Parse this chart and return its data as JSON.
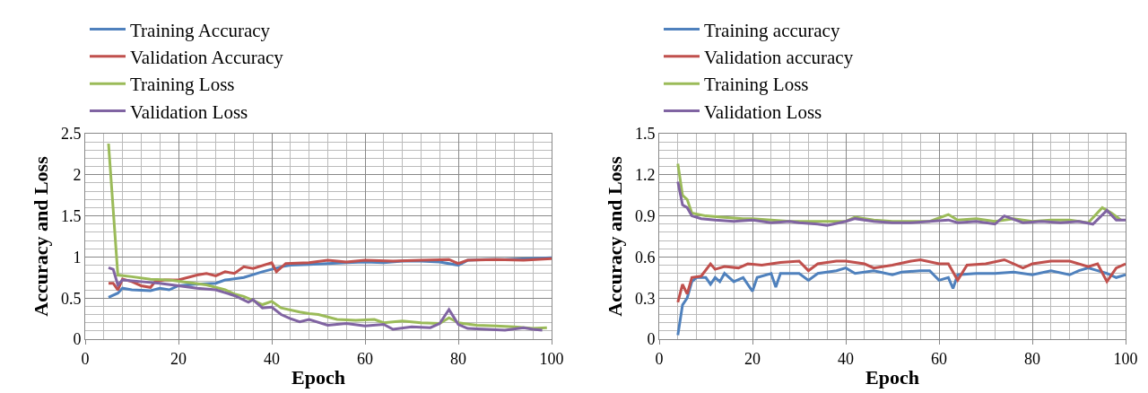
{
  "chart_data": [
    {
      "type": "line",
      "xlabel": "Epoch",
      "ylabel": "Accuracy and Loss",
      "xlim": [
        0,
        100
      ],
      "xticks": [
        0,
        20,
        40,
        60,
        80,
        100
      ],
      "ylim": [
        0,
        2.5
      ],
      "yticks": [
        0,
        0.5,
        1,
        1.5,
        2,
        2.5
      ],
      "grid": true,
      "legend": "top",
      "marker": "none",
      "line_style": "solid",
      "series": [
        {
          "name": "Training Accuracy",
          "color": "#4f81bd",
          "x": [
            5,
            7,
            8,
            10,
            14,
            16,
            18,
            20,
            24,
            28,
            30,
            34,
            38,
            42,
            44,
            48,
            52,
            56,
            60,
            64,
            68,
            72,
            76,
            80,
            82,
            86,
            90,
            95,
            100
          ],
          "values": [
            0.51,
            0.56,
            0.62,
            0.6,
            0.59,
            0.62,
            0.6,
            0.65,
            0.67,
            0.68,
            0.72,
            0.75,
            0.82,
            0.88,
            0.9,
            0.91,
            0.92,
            0.93,
            0.94,
            0.93,
            0.95,
            0.95,
            0.94,
            0.9,
            0.96,
            0.97,
            0.97,
            0.98,
            0.99
          ]
        },
        {
          "name": "Validation Accuracy",
          "color": "#c0504d",
          "x": [
            5,
            6,
            7,
            8,
            10,
            12,
            14,
            15,
            17,
            20,
            24,
            26,
            28,
            30,
            32,
            34,
            36,
            40,
            41,
            43,
            48,
            52,
            56,
            60,
            66,
            72,
            78,
            80,
            82,
            88,
            94,
            100
          ],
          "values": [
            0.68,
            0.68,
            0.6,
            0.73,
            0.7,
            0.65,
            0.63,
            0.7,
            0.72,
            0.72,
            0.78,
            0.8,
            0.77,
            0.82,
            0.8,
            0.88,
            0.86,
            0.93,
            0.82,
            0.92,
            0.93,
            0.96,
            0.94,
            0.96,
            0.95,
            0.96,
            0.97,
            0.92,
            0.96,
            0.97,
            0.96,
            0.98
          ]
        },
        {
          "name": "Training Loss",
          "color": "#9bbb59",
          "x": [
            5,
            7,
            10,
            14,
            18,
            22,
            26,
            30,
            32,
            34,
            36,
            38,
            40,
            42,
            46,
            48,
            50,
            54,
            58,
            62,
            64,
            68,
            72,
            76,
            78,
            80,
            84,
            88,
            92,
            96,
            99
          ],
          "values": [
            2.38,
            0.78,
            0.76,
            0.73,
            0.72,
            0.69,
            0.66,
            0.6,
            0.55,
            0.52,
            0.47,
            0.42,
            0.46,
            0.38,
            0.33,
            0.31,
            0.3,
            0.24,
            0.23,
            0.24,
            0.2,
            0.22,
            0.2,
            0.19,
            0.26,
            0.2,
            0.17,
            0.16,
            0.15,
            0.13,
            0.14
          ]
        },
        {
          "name": "Validation Loss",
          "color": "#8064a2",
          "x": [
            5,
            6,
            7,
            8,
            12,
            16,
            20,
            24,
            28,
            32,
            35,
            36,
            38,
            40,
            42,
            44,
            46,
            48,
            52,
            56,
            60,
            64,
            66,
            70,
            74,
            76,
            78,
            80,
            82,
            86,
            90,
            94,
            96,
            98
          ],
          "values": [
            0.87,
            0.85,
            0.66,
            0.72,
            0.7,
            0.68,
            0.65,
            0.62,
            0.6,
            0.53,
            0.45,
            0.48,
            0.38,
            0.39,
            0.3,
            0.25,
            0.21,
            0.24,
            0.17,
            0.19,
            0.16,
            0.18,
            0.12,
            0.15,
            0.14,
            0.19,
            0.36,
            0.18,
            0.13,
            0.12,
            0.11,
            0.14,
            0.12,
            0.11
          ]
        }
      ]
    },
    {
      "type": "line",
      "xlabel": "Epoch",
      "ylabel": "Accuracy and Loss",
      "xlim": [
        0,
        100
      ],
      "xticks": [
        0,
        20,
        40,
        60,
        80,
        100
      ],
      "ylim": [
        0,
        1.5
      ],
      "yticks": [
        0,
        0.3,
        0.6,
        0.9,
        1.2,
        1.5
      ],
      "grid": true,
      "legend": "top",
      "marker": "none",
      "line_style": "solid",
      "series": [
        {
          "name": "Training accuracy",
          "color": "#4f81bd",
          "x": [
            4,
            5,
            6,
            7,
            8,
            10,
            11,
            12,
            13,
            14,
            16,
            18,
            20,
            21,
            24,
            25,
            26,
            30,
            32,
            34,
            38,
            40,
            42,
            46,
            50,
            52,
            56,
            58,
            60,
            62,
            63,
            64,
            68,
            72,
            76,
            80,
            84,
            88,
            90,
            92,
            94,
            96,
            98,
            100
          ],
          "values": [
            0.03,
            0.25,
            0.3,
            0.42,
            0.45,
            0.45,
            0.4,
            0.45,
            0.42,
            0.48,
            0.42,
            0.45,
            0.35,
            0.45,
            0.48,
            0.38,
            0.48,
            0.48,
            0.43,
            0.48,
            0.5,
            0.52,
            0.48,
            0.5,
            0.47,
            0.49,
            0.5,
            0.5,
            0.43,
            0.45,
            0.37,
            0.47,
            0.48,
            0.48,
            0.49,
            0.47,
            0.5,
            0.47,
            0.5,
            0.52,
            0.5,
            0.48,
            0.45,
            0.47
          ]
        },
        {
          "name": "Validation accuracy",
          "color": "#c0504d",
          "x": [
            4,
            5,
            6,
            7,
            9,
            11,
            12,
            14,
            17,
            19,
            22,
            24,
            26,
            30,
            32,
            34,
            38,
            40,
            44,
            46,
            50,
            54,
            56,
            60,
            62,
            64,
            66,
            70,
            74,
            78,
            80,
            84,
            88,
            92,
            94,
            96,
            98,
            100
          ],
          "values": [
            0.27,
            0.4,
            0.33,
            0.45,
            0.46,
            0.55,
            0.51,
            0.53,
            0.52,
            0.55,
            0.54,
            0.55,
            0.56,
            0.57,
            0.5,
            0.55,
            0.57,
            0.57,
            0.55,
            0.52,
            0.54,
            0.57,
            0.58,
            0.55,
            0.55,
            0.43,
            0.54,
            0.55,
            0.58,
            0.52,
            0.55,
            0.57,
            0.57,
            0.53,
            0.55,
            0.42,
            0.52,
            0.55
          ]
        },
        {
          "name": "Training Loss",
          "color": "#9bbb59",
          "x": [
            4,
            5,
            6,
            7,
            10,
            14,
            18,
            20,
            24,
            28,
            32,
            36,
            40,
            42,
            46,
            50,
            54,
            56,
            58,
            62,
            64,
            68,
            72,
            76,
            80,
            84,
            88,
            92,
            95,
            97,
            99
          ],
          "values": [
            1.28,
            1.05,
            1.02,
            0.92,
            0.9,
            0.89,
            0.88,
            0.88,
            0.87,
            0.86,
            0.86,
            0.86,
            0.86,
            0.89,
            0.87,
            0.86,
            0.86,
            0.86,
            0.86,
            0.91,
            0.87,
            0.88,
            0.86,
            0.88,
            0.86,
            0.87,
            0.87,
            0.85,
            0.96,
            0.92,
            0.87
          ]
        },
        {
          "name": "Validation Loss",
          "color": "#8064a2",
          "x": [
            4,
            5,
            6,
            7,
            9,
            12,
            16,
            20,
            24,
            28,
            30,
            34,
            36,
            40,
            42,
            46,
            50,
            54,
            58,
            62,
            64,
            68,
            72,
            74,
            78,
            82,
            86,
            90,
            93,
            96,
            98,
            100
          ],
          "values": [
            1.15,
            0.98,
            0.96,
            0.9,
            0.88,
            0.87,
            0.86,
            0.87,
            0.85,
            0.86,
            0.85,
            0.84,
            0.83,
            0.86,
            0.88,
            0.86,
            0.85,
            0.85,
            0.86,
            0.87,
            0.85,
            0.86,
            0.84,
            0.9,
            0.85,
            0.86,
            0.85,
            0.86,
            0.84,
            0.94,
            0.87,
            0.87
          ]
        }
      ]
    }
  ]
}
